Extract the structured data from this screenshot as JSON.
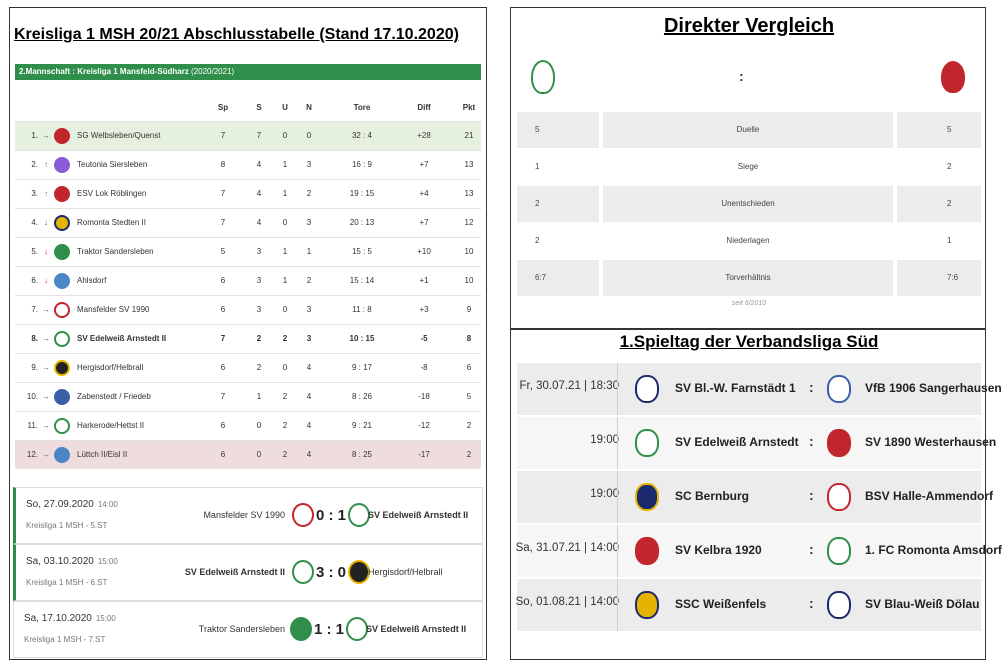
{
  "left": {
    "title": "Kreisliga 1 MSH 20/21 Abschlusstabelle (Stand 17.10.2020)",
    "league_bar": {
      "label": "2.Mannschaft : Kreisliga 1 Mansfeld-Südharz",
      "season": "(2020/2021)"
    },
    "headers": {
      "sp": "Sp",
      "s": "S",
      "u": "U",
      "n": "N",
      "tore": "Tore",
      "diff": "Diff",
      "pkt": "Pkt"
    },
    "rows": [
      {
        "rank": "1.",
        "arrow": "→",
        "team": "SG Welbsleben/Quenst",
        "sp": "7",
        "s": "7",
        "u": "0",
        "n": "0",
        "tore": "32 : 4",
        "diff": "+28",
        "pkt": "21"
      },
      {
        "rank": "2.",
        "arrow": "↑",
        "team": "Teutonia Siersleben",
        "sp": "8",
        "s": "4",
        "u": "1",
        "n": "3",
        "tore": "16 : 9",
        "diff": "+7",
        "pkt": "13"
      },
      {
        "rank": "3.",
        "arrow": "↑",
        "team": "ESV Lok Röblingen",
        "sp": "7",
        "s": "4",
        "u": "1",
        "n": "2",
        "tore": "19 : 15",
        "diff": "+4",
        "pkt": "13"
      },
      {
        "rank": "4.",
        "arrow": "↓",
        "team": "Romonta Stedten II",
        "sp": "7",
        "s": "4",
        "u": "0",
        "n": "3",
        "tore": "20 : 13",
        "diff": "+7",
        "pkt": "12"
      },
      {
        "rank": "5.",
        "arrow": "↓",
        "team": "Traktor Sandersleben",
        "sp": "5",
        "s": "3",
        "u": "1",
        "n": "1",
        "tore": "15 : 5",
        "diff": "+10",
        "pkt": "10"
      },
      {
        "rank": "6.",
        "arrow": "↓",
        "team": "Ahlsdorf",
        "sp": "6",
        "s": "3",
        "u": "1",
        "n": "2",
        "tore": "15 : 14",
        "diff": "+1",
        "pkt": "10"
      },
      {
        "rank": "7.",
        "arrow": "→",
        "team": "Mansfelder SV 1990",
        "sp": "6",
        "s": "3",
        "u": "0",
        "n": "3",
        "tore": "11 : 8",
        "diff": "+3",
        "pkt": "9"
      },
      {
        "rank": "8.",
        "arrow": "→",
        "team": "SV Edelweiß Arnstedt II",
        "sp": "7",
        "s": "2",
        "u": "2",
        "n": "3",
        "tore": "10 : 15",
        "diff": "-5",
        "pkt": "8"
      },
      {
        "rank": "9.",
        "arrow": "→",
        "team": "Hergisdorf/Helbrall",
        "sp": "6",
        "s": "2",
        "u": "0",
        "n": "4",
        "tore": "9 : 17",
        "diff": "-8",
        "pkt": "6"
      },
      {
        "rank": "10.",
        "arrow": "→",
        "team": "Zabenstedt / Friedeb",
        "sp": "7",
        "s": "1",
        "u": "2",
        "n": "4",
        "tore": "8 : 26",
        "diff": "-18",
        "pkt": "5"
      },
      {
        "rank": "11.",
        "arrow": "→",
        "team": "Harkerode/Hettst II",
        "sp": "6",
        "s": "0",
        "u": "2",
        "n": "4",
        "tore": "9 : 21",
        "diff": "-12",
        "pkt": "2"
      },
      {
        "rank": "12.",
        "arrow": "→",
        "team": "Lüttch II/Eisl II",
        "sp": "6",
        "s": "0",
        "u": "2",
        "n": "4",
        "tore": "8 : 25",
        "diff": "-17",
        "pkt": "2"
      }
    ],
    "matches": [
      {
        "date": "So, 27.09.2020",
        "time": "14:00",
        "comp": "Kreisliga 1 MSH - 5.ST",
        "home": "Mansfelder SV 1990",
        "score": "0 : 1",
        "away": "SV Edelweiß Arnstedt II"
      },
      {
        "date": "Sa, 03.10.2020",
        "time": "15:00",
        "comp": "Kreisliga 1 MSH - 6.ST",
        "home": "SV Edelweiß Arnstedt II",
        "score": "3 : 0",
        "away": "Hergisdorf/Helbrall"
      },
      {
        "date": "Sa, 17.10.2020",
        "time": "15:00",
        "comp": "Kreisliga 1 MSH - 7.ST",
        "home": "Traktor Sandersleben",
        "score": "1 : 1",
        "away": "SV Edelweiß Arnstedt II"
      }
    ]
  },
  "direkter_vergleich": {
    "title": "Direkter Vergleich",
    "separator": ":",
    "rows": [
      {
        "left": "5",
        "label": "Duelle",
        "right": "5"
      },
      {
        "left": "1",
        "label": "Siege",
        "right": "2"
      },
      {
        "left": "2",
        "label": "Unentschieden",
        "right": "2"
      },
      {
        "left": "2",
        "label": "Niederlagen",
        "right": "1"
      },
      {
        "left": "6:7",
        "label": "Torverhältnis",
        "right": "7:6"
      }
    ],
    "footer": "seit 6/2010"
  },
  "spieltag": {
    "title": "1.Spieltag der Verbandsliga Süd",
    "rows": [
      {
        "when": "Fr, 30.07.21 | 18:30",
        "home": "SV Bl.-W. Farnstädt 1",
        "away": "VfB 1906 Sangerhausen"
      },
      {
        "when": "19:00",
        "home": "SV Edelweiß Arnstedt",
        "away": "SV 1890 Westerhausen"
      },
      {
        "when": "19:00",
        "home": "SC Bernburg",
        "away": "BSV Halle-Ammendorf"
      },
      {
        "when": "Sa, 31.07.21 | 14:00",
        "home": "SV Kelbra 1920",
        "away": "1. FC Romonta Amsdorf"
      },
      {
        "when": "So, 01.08.21 | 14:00",
        "home": "SSC Weißenfels",
        "away": "SV Blau-Weiß Dölau"
      }
    ],
    "colon": ":"
  },
  "colors": {
    "accent_green": "#2f8f4a",
    "promo_row": "#e6f0df",
    "releg_row": "#efdcdc",
    "arrow_up": "#2e9e3e",
    "arrow_down": "#d02a2a"
  }
}
